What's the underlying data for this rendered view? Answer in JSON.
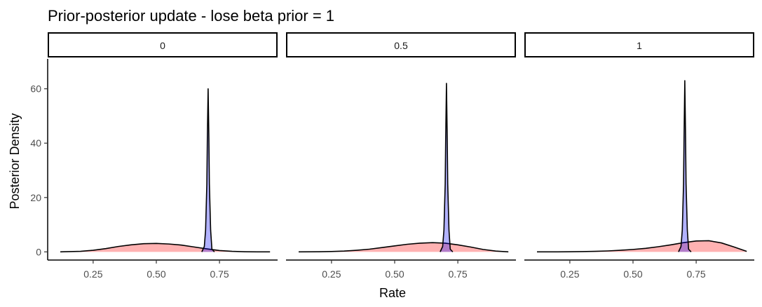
{
  "chart_data": {
    "type": "area",
    "title": "Prior-posterior update - lose beta prior = 1",
    "xlabel": "Rate",
    "ylabel": "Posterior Density",
    "xlim": [
      0.07,
      0.98
    ],
    "ylim": [
      -3,
      71
    ],
    "x_ticks": [
      0.25,
      0.5,
      0.75
    ],
    "x_tick_labels": [
      "0.25",
      "0.50",
      "0.75"
    ],
    "y_ticks": [
      0,
      20,
      40,
      60
    ],
    "y_tick_labels": [
      "0",
      "20",
      "40",
      "60"
    ],
    "grid": false,
    "legend": "none",
    "colors": {
      "prior_fill": "#ff0000",
      "prior_fill_opacity": 0.3,
      "posterior_fill": "#0000ff",
      "posterior_fill_opacity": 0.3,
      "outline": "#000000"
    },
    "facets": [
      {
        "label": "0",
        "series": [
          {
            "role": "prior",
            "x": [
              0.12,
              0.2,
              0.25,
              0.3,
              0.35,
              0.4,
              0.45,
              0.5,
              0.55,
              0.6,
              0.65,
              0.7,
              0.75,
              0.8,
              0.85,
              0.9,
              0.95
            ],
            "y": [
              0.0,
              0.2,
              0.6,
              1.2,
              2.0,
              2.6,
              3.0,
              3.1,
              2.9,
              2.5,
              1.8,
              1.1,
              0.5,
              0.2,
              0.05,
              0.0,
              0.0
            ]
          },
          {
            "role": "posterior",
            "x": [
              0.68,
              0.69,
              0.695,
              0.7,
              0.702,
              0.705,
              0.708,
              0.71,
              0.715,
              0.72,
              0.73
            ],
            "y": [
              0,
              2,
              8,
              25,
              42,
              60,
              42,
              25,
              8,
              1,
              0
            ]
          }
        ]
      },
      {
        "label": "0.5",
        "series": [
          {
            "role": "prior",
            "x": [
              0.12,
              0.2,
              0.25,
              0.3,
              0.35,
              0.4,
              0.45,
              0.5,
              0.55,
              0.6,
              0.65,
              0.7,
              0.75,
              0.8,
              0.85,
              0.9,
              0.95
            ],
            "y": [
              0.0,
              0.05,
              0.15,
              0.3,
              0.6,
              1.0,
              1.6,
              2.2,
              2.8,
              3.2,
              3.4,
              3.2,
              2.6,
              1.8,
              0.9,
              0.3,
              0.0
            ]
          },
          {
            "role": "posterior",
            "x": [
              0.68,
              0.69,
              0.695,
              0.7,
              0.702,
              0.705,
              0.708,
              0.71,
              0.715,
              0.72,
              0.73
            ],
            "y": [
              0,
              2,
              8,
              25,
              42,
              62,
              42,
              25,
              8,
              1,
              0
            ]
          }
        ]
      },
      {
        "label": "1",
        "series": [
          {
            "role": "prior",
            "x": [
              0.12,
              0.2,
              0.25,
              0.3,
              0.35,
              0.4,
              0.45,
              0.5,
              0.55,
              0.6,
              0.65,
              0.7,
              0.75,
              0.8,
              0.85,
              0.9,
              0.95
            ],
            "y": [
              0.0,
              0.02,
              0.05,
              0.1,
              0.2,
              0.35,
              0.6,
              0.9,
              1.3,
              1.9,
              2.6,
              3.4,
              4.0,
              4.1,
              3.3,
              1.8,
              0.2
            ]
          },
          {
            "role": "posterior",
            "x": [
              0.68,
              0.69,
              0.695,
              0.7,
              0.702,
              0.705,
              0.708,
              0.71,
              0.715,
              0.72,
              0.73
            ],
            "y": [
              0,
              2,
              8,
              25,
              42,
              63,
              42,
              25,
              8,
              1,
              0
            ]
          }
        ]
      }
    ]
  }
}
